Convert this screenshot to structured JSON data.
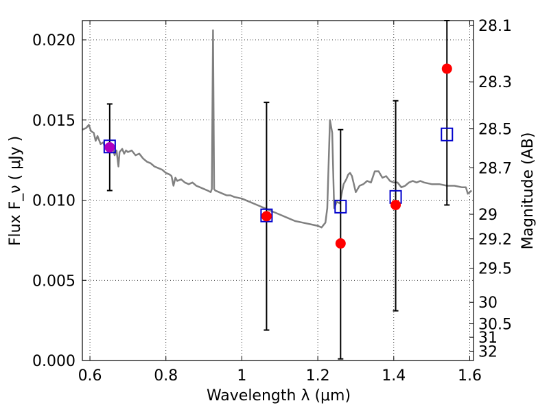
{
  "chart_data": {
    "type": "scatter",
    "xlabel": "Wavelength  λ (μm)",
    "ylabel_left": "Flux  F_ν  ( μJy )",
    "ylabel_right": "Magnitude (AB)",
    "xlim": [
      0.58,
      1.61
    ],
    "ylim": [
      0.0,
      0.0212
    ],
    "grid": true,
    "x_ticks": [
      0.6,
      0.8,
      1.0,
      1.2,
      1.4,
      1.6
    ],
    "x_tick_labels": [
      "0.6",
      "0.8",
      "1",
      "1.2",
      "1.4",
      "1.6"
    ],
    "y_ticks": [
      0.0,
      0.005,
      0.01,
      0.015,
      0.02
    ],
    "y_tick_labels": [
      "0.000",
      "0.005",
      "0.010",
      "0.015",
      "0.020"
    ],
    "right_ticks": [
      {
        "label": "28.1",
        "flux": 0.02089
      },
      {
        "label": "28.3",
        "flux": 0.01738
      },
      {
        "label": "28.5",
        "flux": 0.01445
      },
      {
        "label": "28.7",
        "flux": 0.01202
      },
      {
        "label": "29",
        "flux": 0.00912
      },
      {
        "label": "29.2",
        "flux": 0.00759
      },
      {
        "label": "29.5",
        "flux": 0.00575
      },
      {
        "label": "30",
        "flux": 0.00363
      },
      {
        "label": "30.5",
        "flux": 0.00229
      },
      {
        "label": "31",
        "flux": 0.00145
      },
      {
        "label": "32",
        "flux": 0.00058
      }
    ],
    "series": [
      {
        "kind": "model_spectrum",
        "color": "#808080",
        "points": [
          [
            0.58,
            0.0144
          ],
          [
            0.59,
            0.0145
          ],
          [
            0.597,
            0.0147
          ],
          [
            0.603,
            0.0143
          ],
          [
            0.61,
            0.0142
          ],
          [
            0.615,
            0.0137
          ],
          [
            0.62,
            0.014
          ],
          [
            0.628,
            0.0135
          ],
          [
            0.635,
            0.0136
          ],
          [
            0.64,
            0.0133
          ],
          [
            0.645,
            0.0134
          ],
          [
            0.65,
            0.0133
          ],
          [
            0.655,
            0.0131
          ],
          [
            0.66,
            0.0133
          ],
          [
            0.665,
            0.0128
          ],
          [
            0.67,
            0.0131
          ],
          [
            0.675,
            0.0121
          ],
          [
            0.678,
            0.013
          ],
          [
            0.685,
            0.0132
          ],
          [
            0.69,
            0.0129
          ],
          [
            0.695,
            0.0131
          ],
          [
            0.7,
            0.013
          ],
          [
            0.71,
            0.0131
          ],
          [
            0.72,
            0.0128
          ],
          [
            0.73,
            0.0129
          ],
          [
            0.74,
            0.0126
          ],
          [
            0.75,
            0.0124
          ],
          [
            0.76,
            0.0123
          ],
          [
            0.77,
            0.0121
          ],
          [
            0.78,
            0.012
          ],
          [
            0.79,
            0.0119
          ],
          [
            0.8,
            0.0117
          ],
          [
            0.81,
            0.0116
          ],
          [
            0.815,
            0.0115
          ],
          [
            0.82,
            0.0109
          ],
          [
            0.825,
            0.0114
          ],
          [
            0.83,
            0.0112
          ],
          [
            0.84,
            0.0113
          ],
          [
            0.85,
            0.0111
          ],
          [
            0.86,
            0.011
          ],
          [
            0.87,
            0.0111
          ],
          [
            0.88,
            0.0109
          ],
          [
            0.89,
            0.0108
          ],
          [
            0.9,
            0.0107
          ],
          [
            0.91,
            0.0106
          ],
          [
            0.918,
            0.0105
          ],
          [
            0.921,
            0.0107
          ],
          [
            0.924,
            0.0206
          ],
          [
            0.927,
            0.0107
          ],
          [
            0.93,
            0.0106
          ],
          [
            0.94,
            0.0105
          ],
          [
            0.95,
            0.0104
          ],
          [
            0.96,
            0.0103
          ],
          [
            0.97,
            0.0103
          ],
          [
            0.98,
            0.0102
          ],
          [
            1.0,
            0.0101
          ],
          [
            1.02,
            0.0099
          ],
          [
            1.04,
            0.0097
          ],
          [
            1.06,
            0.0095
          ],
          [
            1.08,
            0.0093
          ],
          [
            1.1,
            0.0091
          ],
          [
            1.12,
            0.0089
          ],
          [
            1.14,
            0.0087
          ],
          [
            1.16,
            0.0086
          ],
          [
            1.18,
            0.0085
          ],
          [
            1.2,
            0.0084
          ],
          [
            1.21,
            0.0083
          ],
          [
            1.22,
            0.0086
          ],
          [
            1.225,
            0.0095
          ],
          [
            1.232,
            0.015
          ],
          [
            1.238,
            0.0142
          ],
          [
            1.243,
            0.0095
          ],
          [
            1.25,
            0.0099
          ],
          [
            1.258,
            0.0098
          ],
          [
            1.262,
            0.0103
          ],
          [
            1.268,
            0.011
          ],
          [
            1.275,
            0.0113
          ],
          [
            1.28,
            0.0116
          ],
          [
            1.285,
            0.0117
          ],
          [
            1.29,
            0.0115
          ],
          [
            1.3,
            0.0105
          ],
          [
            1.31,
            0.0109
          ],
          [
            1.32,
            0.011
          ],
          [
            1.33,
            0.0112
          ],
          [
            1.34,
            0.0111
          ],
          [
            1.35,
            0.0118
          ],
          [
            1.36,
            0.0118
          ],
          [
            1.37,
            0.0114
          ],
          [
            1.38,
            0.0115
          ],
          [
            1.39,
            0.0112
          ],
          [
            1.4,
            0.0111
          ],
          [
            1.41,
            0.0111
          ],
          [
            1.42,
            0.0108
          ],
          [
            1.43,
            0.0109
          ],
          [
            1.44,
            0.0111
          ],
          [
            1.45,
            0.0112
          ],
          [
            1.46,
            0.0111
          ],
          [
            1.47,
            0.0112
          ],
          [
            1.48,
            0.0111
          ],
          [
            1.5,
            0.011
          ],
          [
            1.52,
            0.011
          ],
          [
            1.54,
            0.0109
          ],
          [
            1.56,
            0.0109
          ],
          [
            1.58,
            0.0108
          ],
          [
            1.59,
            0.0108
          ],
          [
            1.595,
            0.0104
          ],
          [
            1.605,
            0.0106
          ]
        ]
      },
      {
        "kind": "model_photometry",
        "marker": "open-square",
        "color": "#0000cc",
        "points": [
          [
            0.652,
            0.01335
          ],
          [
            1.065,
            0.00905
          ],
          [
            1.26,
            0.0096
          ],
          [
            1.405,
            0.0102
          ],
          [
            1.54,
            0.0141
          ]
        ]
      },
      {
        "kind": "observed_photometry",
        "marker": "filled-circle",
        "color": "#ff0000",
        "points": [
          {
            "x": 0.652,
            "y": 0.0133,
            "yerr_low": 0.0106,
            "yerr_high": 0.016,
            "color": "#b000c0"
          },
          {
            "x": 1.065,
            "y": 0.009,
            "yerr_low": 0.0019,
            "yerr_high": 0.0161,
            "color": "#ff0000"
          },
          {
            "x": 1.26,
            "y": 0.0073,
            "yerr_low": 0.0001,
            "yerr_high": 0.0144,
            "color": "#ff0000"
          },
          {
            "x": 1.405,
            "y": 0.0097,
            "yerr_low": 0.0031,
            "yerr_high": 0.0162,
            "color": "#ff0000"
          },
          {
            "x": 1.54,
            "y": 0.0182,
            "yerr_low": 0.0097,
            "yerr_high": 0.0212,
            "color": "#ff0000"
          }
        ]
      }
    ]
  }
}
